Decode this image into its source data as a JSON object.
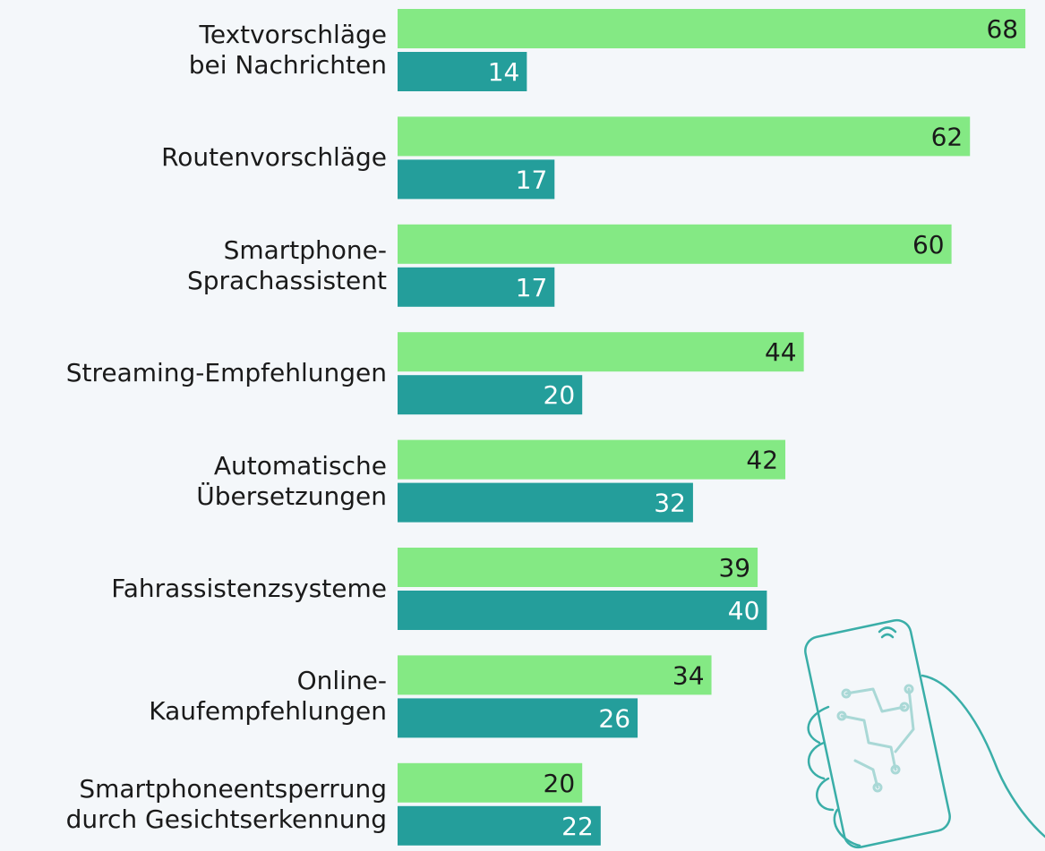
{
  "chart_data": {
    "type": "bar",
    "orientation": "horizontal",
    "categories": [
      "Textvorschläge\nbei Nachrichten",
      "Routenvorschläge",
      "Smartphone-\nSprachassistent",
      "Streaming-Empfehlungen",
      "Automatische\nÜbersetzungen",
      "Fahrassistenzsysteme",
      "Online-\nKaufempfehlungen",
      "Smartphoneentsperrung\ndurch Gesichtserkennung"
    ],
    "series": [
      {
        "color": "#84e984",
        "label_color": "#1a1a1a",
        "values": [
          68,
          62,
          60,
          44,
          42,
          39,
          34,
          20
        ]
      },
      {
        "color": "#249e9b",
        "label_color": "#ffffff",
        "values": [
          14,
          17,
          17,
          20,
          32,
          40,
          26,
          22
        ]
      }
    ]
  }
}
